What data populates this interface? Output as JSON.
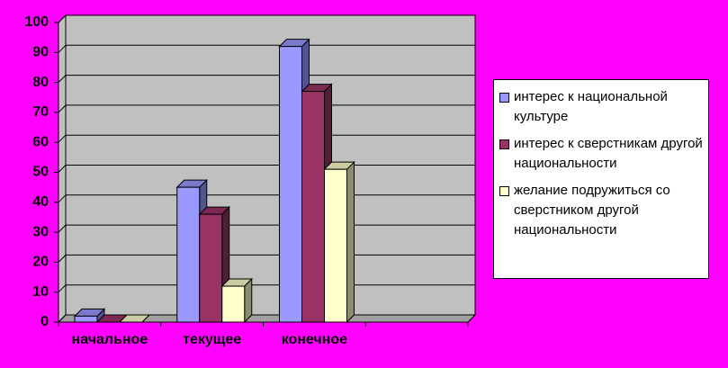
{
  "chart_data": {
    "type": "bar3d",
    "categories": [
      "начальное",
      "текущее",
      "конечное",
      null
    ],
    "series": [
      {
        "name": "интерес к национальной культуре",
        "color": "#9999ff",
        "values": [
          2,
          45,
          92,
          null
        ]
      },
      {
        "name": "интерес к сверстникам другой национальности",
        "color": "#993366",
        "values": [
          0,
          36,
          77,
          null
        ]
      },
      {
        "name": "желание подружиться со сверстником другой национальности",
        "color": "#ffffcc",
        "values": [
          0,
          12,
          51,
          null
        ]
      }
    ],
    "ylim": [
      0,
      100
    ],
    "yticks": [
      0,
      10,
      20,
      30,
      40,
      50,
      60,
      70,
      80,
      90,
      100
    ],
    "grid": true,
    "legend": "right",
    "background": "#ff00ff",
    "wall": "#c0c0c0"
  }
}
